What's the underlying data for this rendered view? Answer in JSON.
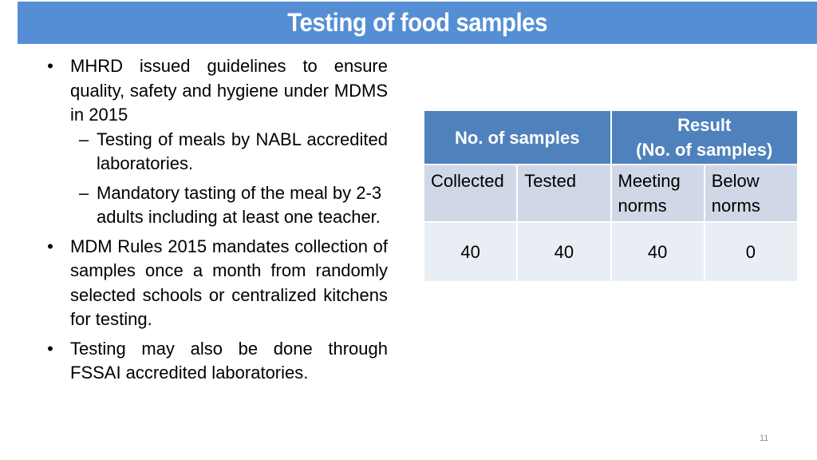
{
  "slide": {
    "title": "Testing of food samples",
    "page_number": "11",
    "colors": {
      "title_bar": "#558ED5",
      "table_header": "#4F81BD",
      "table_row_1": "#D0D8E8",
      "table_row_2": "#E9EDF4"
    }
  },
  "bullets": [
    {
      "text": "MHRD issued guidelines to ensure quality, safety and hygiene under MDMS in 2015",
      "sub": [
        {
          "text": "Testing of meals by NABL accredited laboratories."
        },
        {
          "text": "Mandatory tasting of the meal by 2-3 adults including at least one teacher."
        }
      ]
    },
    {
      "text": "MDM Rules 2015 mandates collection of samples once a month from randomly selected schools or centralized kitchens for testing."
    },
    {
      "text": "Testing may also be done through FSSAI accredited laboratories."
    }
  ],
  "markers": {
    "bullet": "•",
    "dash": "–"
  },
  "table": {
    "group_headers": [
      {
        "label": "No. of samples"
      },
      {
        "label_line1": "Result",
        "label_line2": "(No. of samples)"
      }
    ],
    "columns": [
      {
        "line1": "Collected",
        "line2": ""
      },
      {
        "line1": "Tested",
        "line2": ""
      },
      {
        "line1": "Meeting",
        "line2": "norms"
      },
      {
        "line1": "Below",
        "line2": "norms"
      }
    ],
    "values": [
      "40",
      "40",
      "40",
      "0"
    ]
  }
}
